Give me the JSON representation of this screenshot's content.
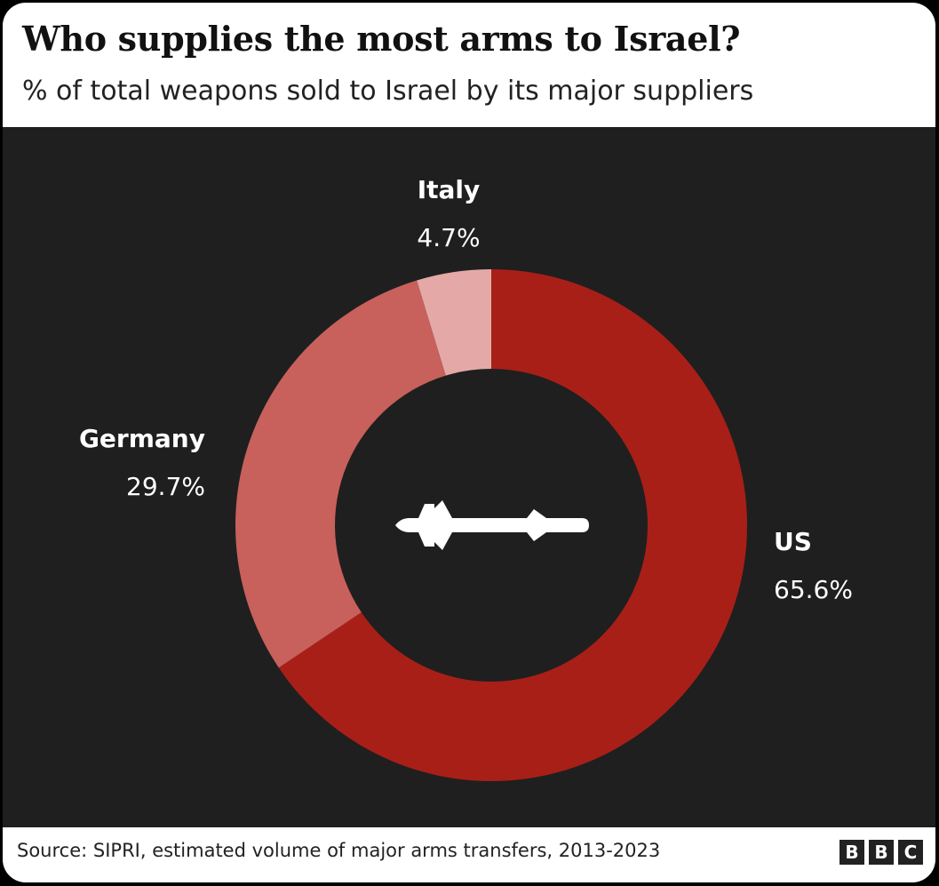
{
  "header": {
    "title": "Who supplies the most arms to Israel?",
    "subtitle": "% of total weapons sold to Israel by its major suppliers"
  },
  "footer": {
    "source": "Source: SIPRI, estimated volume of major arms transfers, 2013-2023",
    "logo": [
      "B",
      "B",
      "C"
    ]
  },
  "chart_data": {
    "type": "pie",
    "style": "donut",
    "unit": "%",
    "slices": [
      {
        "label": "US",
        "value": 65.6,
        "display": "65.6%",
        "color": "#a81f18"
      },
      {
        "label": "Germany",
        "value": 29.7,
        "display": "29.7%",
        "color": "#c8605c"
      },
      {
        "label": "Italy",
        "value": 4.7,
        "display": "4.7%",
        "color": "#e4a9a6"
      }
    ],
    "center_icon": "missile-icon",
    "background": "#1f1f1f",
    "text_color": "#ffffff"
  }
}
